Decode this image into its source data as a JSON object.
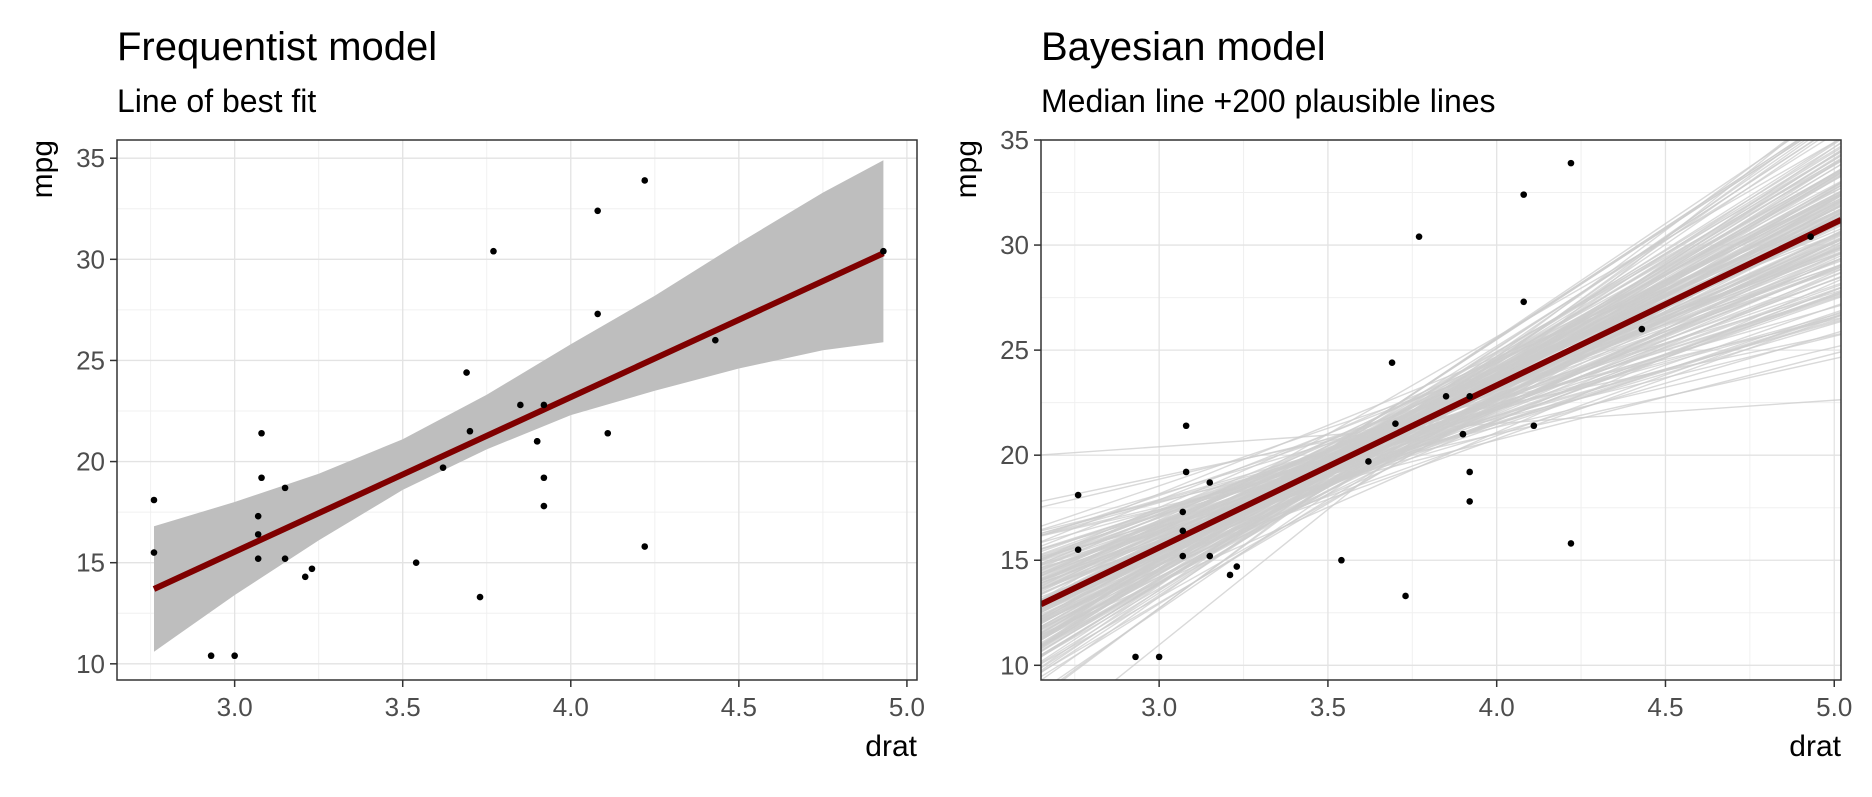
{
  "chart_data": [
    {
      "type": "scatter",
      "title": "Frequentist model",
      "subtitle": "Line of best fit",
      "xlabel": "drat",
      "ylabel": "mpg",
      "xlim": [
        2.65,
        5.03
      ],
      "ylim": [
        9.2,
        35.9
      ],
      "x_ticks": [
        "3.0",
        "3.5",
        "4.0",
        "4.5",
        "5.0"
      ],
      "y_ticks": [
        "10",
        "15",
        "20",
        "25",
        "30",
        "35"
      ],
      "grid": true,
      "colors": {
        "points": "#000000",
        "fit_line": "#7f0000",
        "ribbon": "#bebebe"
      },
      "points": [
        [
          3.9,
          21.0
        ],
        [
          3.9,
          21.0
        ],
        [
          3.85,
          22.8
        ],
        [
          3.08,
          21.4
        ],
        [
          3.15,
          18.7
        ],
        [
          2.76,
          18.1
        ],
        [
          3.21,
          14.3
        ],
        [
          3.69,
          24.4
        ],
        [
          3.92,
          22.8
        ],
        [
          3.92,
          19.2
        ],
        [
          3.92,
          17.8
        ],
        [
          3.07,
          16.4
        ],
        [
          3.07,
          17.3
        ],
        [
          3.07,
          15.2
        ],
        [
          2.93,
          10.4
        ],
        [
          3.0,
          10.4
        ],
        [
          3.23,
          14.7
        ],
        [
          4.08,
          32.4
        ],
        [
          4.93,
          30.4
        ],
        [
          4.22,
          33.9
        ],
        [
          3.7,
          21.5
        ],
        [
          2.76,
          15.5
        ],
        [
          3.15,
          15.2
        ],
        [
          3.73,
          13.3
        ],
        [
          3.08,
          19.2
        ],
        [
          4.08,
          27.3
        ],
        [
          4.43,
          26.0
        ],
        [
          3.77,
          30.4
        ],
        [
          4.22,
          15.8
        ],
        [
          3.62,
          19.7
        ],
        [
          3.54,
          15.0
        ],
        [
          4.11,
          21.4
        ]
      ],
      "fit_line": {
        "x": [
          2.76,
          4.93
        ],
        "y": [
          13.7,
          30.3
        ]
      },
      "ribbon": {
        "x": [
          2.76,
          3.0,
          3.25,
          3.5,
          3.75,
          4.0,
          4.25,
          4.5,
          4.75,
          4.93
        ],
        "lower": [
          10.6,
          13.4,
          16.1,
          18.6,
          20.6,
          22.3,
          23.5,
          24.6,
          25.5,
          25.9
        ],
        "upper": [
          16.8,
          18.0,
          19.4,
          21.1,
          23.3,
          25.8,
          28.2,
          30.8,
          33.3,
          34.9
        ]
      }
    },
    {
      "type": "scatter",
      "title": "Bayesian model",
      "subtitle": "Median line +200 plausible lines",
      "xlabel": "drat",
      "ylabel": "mpg",
      "xlim": [
        2.65,
        5.02
      ],
      "ylim": [
        9.3,
        35.0
      ],
      "x_ticks": [
        "3.0",
        "3.5",
        "4.0",
        "4.5",
        "5.0"
      ],
      "y_ticks": [
        "10",
        "15",
        "20",
        "25",
        "30",
        "35"
      ],
      "grid": true,
      "colors": {
        "points": "#000000",
        "median_line": "#7f0000",
        "plausible_lines": "#cccccc"
      },
      "points": [
        [
          3.9,
          21.0
        ],
        [
          3.9,
          21.0
        ],
        [
          3.85,
          22.8
        ],
        [
          3.08,
          21.4
        ],
        [
          3.15,
          18.7
        ],
        [
          2.76,
          18.1
        ],
        [
          3.21,
          14.3
        ],
        [
          3.69,
          24.4
        ],
        [
          3.92,
          22.8
        ],
        [
          3.92,
          19.2
        ],
        [
          3.92,
          17.8
        ],
        [
          3.07,
          16.4
        ],
        [
          3.07,
          17.3
        ],
        [
          3.07,
          15.2
        ],
        [
          2.93,
          10.4
        ],
        [
          3.0,
          10.4
        ],
        [
          3.23,
          14.7
        ],
        [
          4.08,
          32.4
        ],
        [
          4.93,
          30.4
        ],
        [
          4.22,
          33.9
        ],
        [
          3.7,
          21.5
        ],
        [
          2.76,
          15.5
        ],
        [
          3.15,
          15.2
        ],
        [
          3.73,
          13.3
        ],
        [
          3.08,
          19.2
        ],
        [
          4.08,
          27.3
        ],
        [
          4.43,
          26.0
        ],
        [
          3.77,
          30.4
        ],
        [
          4.22,
          15.8
        ],
        [
          3.62,
          19.7
        ],
        [
          3.54,
          15.0
        ],
        [
          4.11,
          21.4
        ]
      ],
      "median_line": {
        "x": [
          2.65,
          5.02
        ],
        "y": [
          12.9,
          31.2
        ]
      },
      "plausible_lines": {
        "count": 200,
        "center_x": 3.6,
        "center_y": 20.2
      }
    }
  ]
}
